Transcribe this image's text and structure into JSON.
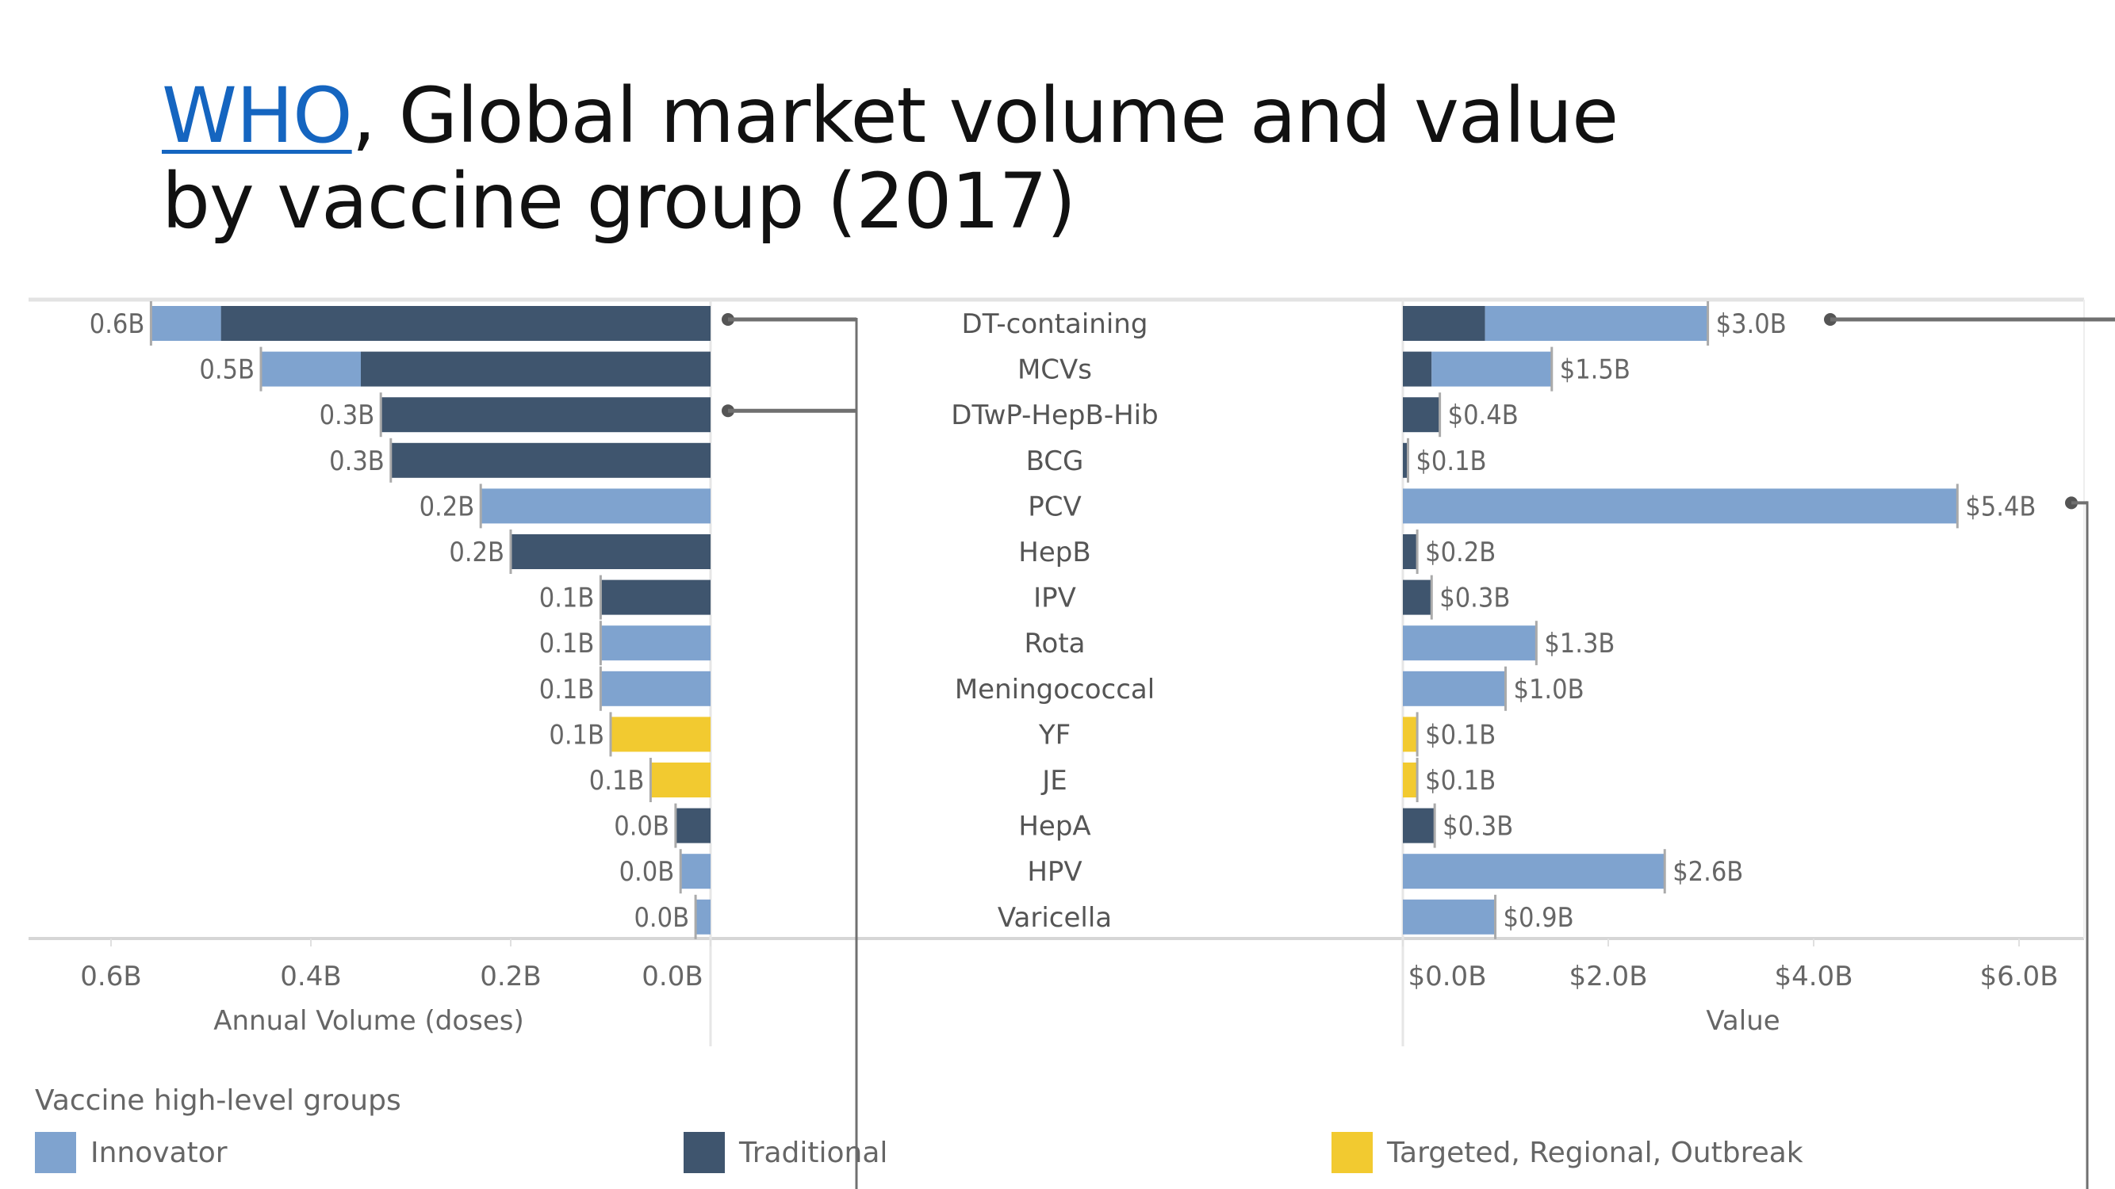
{
  "title": {
    "link_text": "WHO",
    "line1_rest": ", Global market volume and value",
    "line2": "by vaccine group (2017)"
  },
  "colors": {
    "Innovator": "#7fa3cf",
    "Traditional": "#3f556e",
    "Targeted, Regional, Outbreak": "#f2ca30",
    "axis": "#d9d9d9",
    "connector": "#707070"
  },
  "legend": {
    "title": "Vaccine high-level groups",
    "items": [
      {
        "label": "Innovator",
        "color": "#7fa3cf"
      },
      {
        "label": "Traditional",
        "color": "#3f556e"
      },
      {
        "label": "Targeted, Regional, Outbreak",
        "color": "#f2ca30"
      }
    ]
  },
  "chart_data": [
    {
      "type": "bar",
      "orientation": "horizontal-reversed",
      "title": "Annual Volume (doses)",
      "xlabel": "Annual Volume (doses)",
      "unit": "B doses",
      "xlim": [
        0,
        0.65
      ],
      "ticks": [
        {
          "value": 0.6,
          "label": "0.6B"
        },
        {
          "value": 0.4,
          "label": "0.4B"
        },
        {
          "value": 0.2,
          "label": "0.2B"
        },
        {
          "value": 0.0,
          "label": "0.0B"
        }
      ],
      "categories": [
        "DT-containing",
        "MCVs",
        "DTwP-HepB-Hib",
        "BCG",
        "PCV",
        "HepB",
        "IPV",
        "Rota",
        "Meningococcal",
        "YF",
        "JE",
        "HepA",
        "HPV",
        "Varicella"
      ],
      "series": [
        {
          "name": "Traditional",
          "values": [
            0.49,
            0.35,
            0.33,
            0.32,
            0,
            0.2,
            0.11,
            0,
            0,
            0,
            0,
            0.035,
            0,
            0
          ]
        },
        {
          "name": "Innovator",
          "values": [
            0.07,
            0.1,
            0,
            0,
            0.23,
            0,
            0,
            0.11,
            0.11,
            0,
            0,
            0,
            0.03,
            0.015
          ]
        },
        {
          "name": "Targeted, Regional, Outbreak",
          "values": [
            0,
            0,
            0,
            0,
            0,
            0,
            0,
            0,
            0,
            0.1,
            0.06,
            0,
            0,
            0
          ]
        }
      ],
      "data_labels": [
        "0.6B",
        "0.5B",
        "0.3B",
        "0.3B",
        "0.2B",
        "0.2B",
        "0.1B",
        "0.1B",
        "0.1B",
        "0.1B",
        "0.1B",
        "0.0B",
        "0.0B",
        "0.0B"
      ]
    },
    {
      "type": "bar",
      "orientation": "horizontal",
      "title": "Value",
      "xlabel": "Value",
      "unit": "$B",
      "xlim": [
        0,
        6.5
      ],
      "ticks": [
        {
          "value": 0,
          "label": "$0.0B"
        },
        {
          "value": 2,
          "label": "$2.0B"
        },
        {
          "value": 4,
          "label": "$4.0B"
        },
        {
          "value": 6,
          "label": "$6.0B"
        }
      ],
      "categories": [
        "DT-containing",
        "MCVs",
        "DTwP-HepB-Hib",
        "BCG",
        "PCV",
        "HepB",
        "IPV",
        "Rota",
        "Meningococcal",
        "YF",
        "JE",
        "HepA",
        "HPV",
        "Varicella"
      ],
      "series": [
        {
          "name": "Traditional",
          "values": [
            0.8,
            0.28,
            0.36,
            0.05,
            0,
            0.14,
            0.28,
            0,
            0,
            0,
            0,
            0.31,
            0,
            0
          ]
        },
        {
          "name": "Innovator",
          "values": [
            2.17,
            1.17,
            0,
            0,
            5.4,
            0,
            0,
            1.3,
            1.0,
            0,
            0,
            0,
            2.55,
            0.9
          ]
        },
        {
          "name": "Targeted, Regional, Outbreak",
          "values": [
            0,
            0,
            0,
            0,
            0,
            0,
            0,
            0,
            0,
            0.14,
            0.14,
            0,
            0,
            0
          ]
        }
      ],
      "data_labels": [
        "$3.0B",
        "$1.5B",
        "$0.4B",
        "$0.1B",
        "$5.4B",
        "$0.2B",
        "$0.3B",
        "$1.3B",
        "$1.0B",
        "$0.1B",
        "$0.1B",
        "$0.3B",
        "$2.6B",
        "$0.9B"
      ]
    }
  ],
  "highlights": {
    "volume_markers": [
      "DT-containing",
      "DTwP-HepB-Hib"
    ],
    "value_markers": [
      "DT-containing",
      "PCV"
    ]
  }
}
